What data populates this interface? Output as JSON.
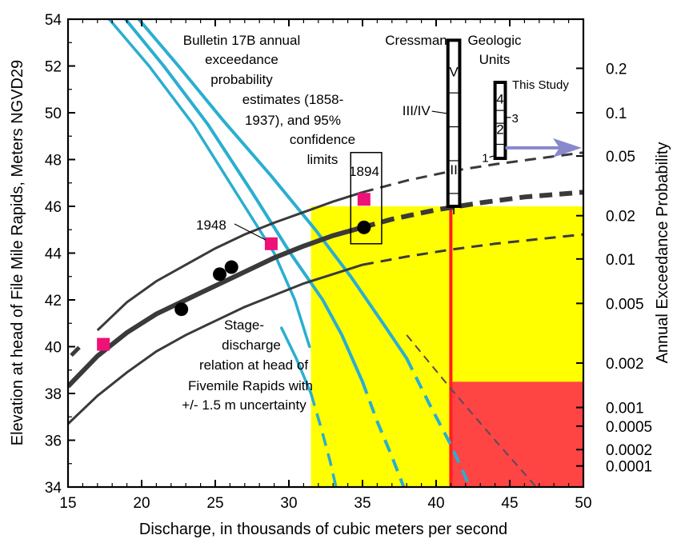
{
  "chart_data": {
    "type": "line",
    "xlabel": "Discharge, in thousands of cubic meters per second",
    "ylabel": "Elevation at head of File Mile Rapids, Meters NGVD29",
    "y2label": "Annual Exceedance Probability",
    "xlim": [
      15,
      50
    ],
    "ylim": [
      34,
      54
    ],
    "x_ticks": [
      15,
      20,
      25,
      30,
      35,
      40,
      45,
      50
    ],
    "y_ticks": [
      34,
      36,
      38,
      40,
      42,
      44,
      46,
      48,
      50,
      52,
      54
    ],
    "y2_ticks": [
      {
        "label": "0.2",
        "elev": 51.9
      },
      {
        "label": "0.1",
        "elev": 50.0
      },
      {
        "label": "0.05",
        "elev": 48.15
      },
      {
        "label": "0.02",
        "elev": 45.6
      },
      {
        "label": "0.01",
        "elev": 43.75
      },
      {
        "label": "0.005",
        "elev": 41.85
      },
      {
        "label": "0.002",
        "elev": 39.3
      },
      {
        "label": "0.001",
        "elev": 37.4
      },
      {
        "label": "0.0005",
        "elev": 35.5
      },
      {
        "label": "0.0002",
        "elev": 32.95
      },
      {
        "label": "0.0001",
        "elev": 31.1
      }
    ],
    "y2_ticks_display": [
      {
        "label": "0.2",
        "elev": 51.9
      },
      {
        "label": "0.1",
        "elev": 50.0
      },
      {
        "label": "0.05",
        "elev": 48.15
      },
      {
        "label": "0.02",
        "elev": 45.6
      },
      {
        "label": "0.01",
        "elev": 43.75
      },
      {
        "label": "0.005",
        "elev": 41.85
      },
      {
        "label": "0.002",
        "elev": 39.3
      },
      {
        "label": "0.001",
        "elev": 37.4
      },
      {
        "label": "0.0005",
        "elev": 36.6
      },
      {
        "label": "0.0002",
        "elev": 35.6
      },
      {
        "label": "0.0001",
        "elev": 34.9
      }
    ],
    "colors": {
      "rating": "#3a3a3a",
      "bulletin": "#2aaed0",
      "yellow_region": "#ffff00",
      "red_region": "#ff4444",
      "red_line": "#ff2020",
      "pink_marker": "#ee1177",
      "arrow": "#8888cc",
      "dashed_probability": "#5a4a60"
    },
    "stage_discharge": {
      "central": [
        [
          15,
          38.3
        ],
        [
          17,
          39.6
        ],
        [
          19,
          40.6
        ],
        [
          21,
          41.4
        ],
        [
          23,
          42.0
        ],
        [
          25,
          42.6
        ],
        [
          27,
          43.2
        ],
        [
          29,
          43.8
        ],
        [
          31,
          44.3
        ],
        [
          33,
          44.75
        ],
        [
          35,
          45.1
        ]
      ],
      "central_extrapolated": [
        [
          35,
          45.1
        ],
        [
          37,
          45.45
        ],
        [
          40,
          45.85
        ],
        [
          43,
          46.15
        ],
        [
          46,
          46.4
        ],
        [
          50,
          46.6
        ]
      ],
      "upper": [
        [
          17,
          40.7
        ],
        [
          19,
          41.9
        ],
        [
          21,
          42.8
        ],
        [
          23,
          43.5
        ],
        [
          25,
          44.2
        ],
        [
          27,
          44.8
        ],
        [
          29,
          45.3
        ],
        [
          31,
          45.75
        ],
        [
          33,
          46.2
        ],
        [
          35,
          46.6
        ]
      ],
      "upper_extrapolated": [
        [
          35,
          46.6
        ],
        [
          38,
          47.1
        ],
        [
          41,
          47.5
        ],
        [
          44,
          47.8
        ],
        [
          47,
          48.05
        ],
        [
          50,
          48.3
        ]
      ],
      "lower": [
        [
          15,
          36.7
        ],
        [
          17,
          37.9
        ],
        [
          19,
          38.9
        ],
        [
          21,
          39.8
        ],
        [
          23,
          40.5
        ],
        [
          25,
          41.1
        ],
        [
          27,
          41.7
        ],
        [
          29,
          42.2
        ],
        [
          31,
          42.7
        ],
        [
          33,
          43.1
        ],
        [
          35,
          43.5
        ]
      ],
      "lower_extrapolated": [
        [
          35,
          43.5
        ],
        [
          38,
          43.85
        ],
        [
          41,
          44.15
        ],
        [
          44,
          44.4
        ],
        [
          47,
          44.6
        ],
        [
          50,
          44.8
        ]
      ],
      "start_marker": [
        15.6,
        39.8
      ]
    },
    "bulletin_17b": {
      "left_outer": {
        "solid": [
          [
            17.8,
            54
          ],
          [
            20.5,
            52
          ],
          [
            23.5,
            49.5
          ],
          [
            26.5,
            46.5
          ],
          [
            29,
            44
          ],
          [
            30.4,
            42
          ],
          [
            31.4,
            40
          ]
        ],
        "dashed": []
      },
      "left_inner": {
        "solid": [
          [
            18.9,
            54
          ],
          [
            21.5,
            52
          ],
          [
            24.5,
            49.5
          ],
          [
            27.5,
            46.6
          ],
          [
            30.1,
            44
          ],
          [
            32.3,
            42
          ],
          [
            33.6,
            40.5
          ],
          [
            35,
            38.5
          ]
        ],
        "dashed": [
          [
            35,
            38.5
          ],
          [
            36,
            36.8
          ],
          [
            37,
            35.3
          ],
          [
            37.8,
            34
          ]
        ]
      },
      "center": {
        "solid": [
          [
            19.8,
            54
          ],
          [
            22.5,
            52
          ],
          [
            25.5,
            49.7
          ],
          [
            28.8,
            47.3
          ],
          [
            31.8,
            45
          ],
          [
            34.2,
            43
          ],
          [
            36.5,
            40.9
          ],
          [
            38,
            39.5
          ]
        ],
        "dashed": [
          [
            38,
            39.5
          ],
          [
            39.5,
            37.6
          ],
          [
            41,
            35.8
          ],
          [
            42.3,
            34
          ]
        ]
      },
      "lower_bound": {
        "solid": [
          [
            29.5,
            40.8
          ],
          [
            30.5,
            39.5
          ],
          [
            31.5,
            38
          ]
        ],
        "dashed": [
          [
            31.5,
            38
          ],
          [
            32.2,
            36.5
          ],
          [
            32.8,
            35.1
          ],
          [
            33.2,
            34
          ]
        ]
      },
      "probability_dashed": [
        [
          38,
          40.5
        ],
        [
          41,
          38.2
        ],
        [
          44,
          36
        ],
        [
          46.8,
          34
        ]
      ]
    },
    "regions": {
      "yellow": {
        "x": [
          31.5,
          50
        ],
        "y": [
          34,
          46
        ]
      },
      "red": {
        "x": [
          41,
          50
        ],
        "y": [
          34,
          38.5
        ]
      },
      "red_line_x": 41
    },
    "observations": {
      "black_dots": [
        [
          22.7,
          41.6
        ],
        [
          25.3,
          43.1
        ],
        [
          26.1,
          43.4
        ],
        [
          35.1,
          45.1
        ]
      ],
      "pink_squares": [
        [
          17.4,
          40.1
        ],
        [
          28.8,
          44.4
        ],
        [
          35.1,
          46.3
        ]
      ],
      "box_1894": {
        "x": [
          34.2,
          36.3
        ],
        "y": [
          44.4,
          48.3
        ]
      }
    },
    "geologic_units": {
      "cressman_column": {
        "x": [
          40.8,
          41.6
        ],
        "y": [
          46.0,
          53.1
        ],
        "labels": [
          {
            "text": "V",
            "elev": 51.8
          },
          {
            "text": "III/IV",
            "elev": 50.1
          },
          {
            "text": "II",
            "elev": 47.6
          },
          {
            "text": "I",
            "elev": 45.9
          }
        ]
      },
      "this_study_column": {
        "x": [
          44.0,
          44.7
        ],
        "y": [
          48.05,
          51.3
        ],
        "labels": [
          {
            "text": "4",
            "elev": 50.6
          },
          {
            "text": "3",
            "elev": 49.8
          },
          {
            "text": "2",
            "elev": 49.3
          },
          {
            "text": "1",
            "elev": 48.1
          }
        ]
      },
      "arrow": {
        "from": [
          44.7,
          48.5
        ],
        "to": [
          50,
          48.5
        ]
      }
    },
    "annotations": {
      "bulletin_lines": [
        "Bulletin 17B annual",
        "exceedance",
        "probability",
        "estimates (1858-",
        "1937), and 95%",
        "confidence",
        "limits"
      ],
      "stage_lines": [
        "Stage-",
        "discharge",
        "relation at head of",
        "Fivemile Rapids with",
        "+/- 1.5 m uncertainty"
      ],
      "label_1894": "1894",
      "label_1948": "1948",
      "cressman": "Cressman",
      "geologic_units_lines": [
        "Geologic",
        "Units"
      ],
      "this_study": "This Study"
    }
  }
}
